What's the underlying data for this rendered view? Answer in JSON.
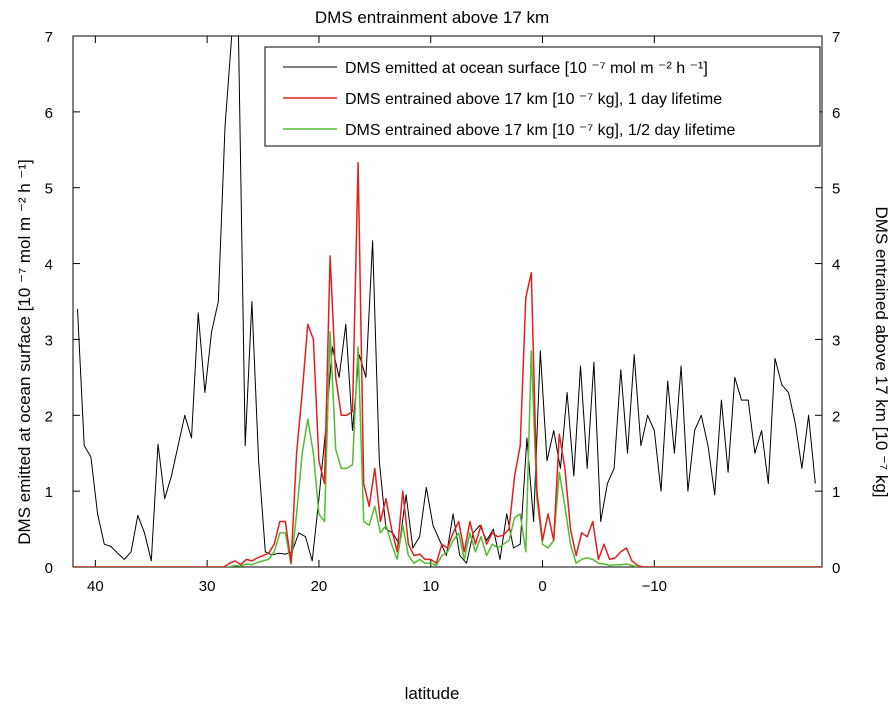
{
  "chart_data": {
    "type": "line",
    "title": "DMS entrainment above 17 km",
    "xlabel": "latitude",
    "ylabel_left": "DMS emitted at ocean surface [10 ⁻⁷ mol m ⁻² h ⁻¹]",
    "ylabel_right": "DMS entrained above 17 km [10 ⁻⁷ kg]",
    "xlim": [
      42,
      -25
    ],
    "x_reversed": true,
    "ylim": [
      0,
      7
    ],
    "x_ticks": [
      40,
      30,
      20,
      10,
      0,
      -10
    ],
    "x_tick_labels": [
      "40",
      "30",
      "20",
      "10",
      "0",
      "−10"
    ],
    "y_ticks": [
      0,
      1,
      2,
      3,
      4,
      5,
      6,
      7
    ],
    "y_tick_labels_left": [
      "0",
      "1",
      "2",
      "3",
      "4",
      "5",
      "6",
      "7"
    ],
    "y_tick_labels_right": [
      "0",
      "1",
      "2",
      "3",
      "4",
      "5",
      "6",
      "7"
    ],
    "grid": false,
    "legend_position": "top-right",
    "series": [
      {
        "name": "DMS emitted at ocean surface [10 ⁻⁷ mol m ⁻² h ⁻¹]",
        "color": "#000000",
        "x": [
          41.6,
          41,
          40.4,
          39.8,
          39.2,
          38.6,
          38,
          37.4,
          36.8,
          36.2,
          35.6,
          35,
          34.4,
          33.8,
          33.2,
          32.6,
          32,
          31.4,
          30.8,
          30.2,
          29.6,
          29,
          28.4,
          27.8,
          27.2,
          26.6,
          26,
          25.4,
          24.8,
          24.2,
          23.6,
          23,
          22.4,
          21.8,
          21.2,
          20.6,
          20,
          19.4,
          18.8,
          18.2,
          17.6,
          17,
          16.4,
          15.8,
          15.2,
          14.6,
          14,
          13.4,
          12.8,
          12.2,
          11.6,
          11,
          10.4,
          9.8,
          9.2,
          8.6,
          8,
          7.4,
          6.8,
          6.2,
          5.6,
          5,
          4.4,
          3.8,
          3.2,
          2.6,
          2,
          1.4,
          0.8,
          0.2,
          -0.4,
          -1,
          -1.6,
          -2.2,
          -2.8,
          -3.4,
          -4,
          -4.6,
          -5.2,
          -5.8,
          -6.4,
          -7,
          -7.6,
          -8.2,
          -8.8,
          -9.4,
          -10,
          -10.6,
          -11.2,
          -11.8,
          -12.4,
          -13,
          -13.6,
          -14.2,
          -14.8,
          -15.4,
          -16,
          -16.6,
          -17.2,
          -17.8,
          -18.4,
          -19,
          -19.6,
          -20.2,
          -20.8,
          -21.4,
          -22,
          -22.6,
          -23.2,
          -23.8,
          -24.4
        ],
        "y": [
          3.4,
          1.6,
          1.45,
          0.7,
          0.3,
          0.27,
          0.18,
          0.1,
          0.2,
          0.68,
          0.45,
          0.08,
          1.62,
          0.9,
          1.2,
          1.6,
          2.0,
          1.7,
          3.35,
          2.3,
          3.1,
          3.5,
          5.8,
          7.0,
          7.0,
          1.6,
          3.5,
          1.4,
          0.2,
          0.16,
          0.18,
          0.17,
          0.2,
          0.45,
          0.4,
          0.08,
          0.9,
          1.8,
          2.9,
          2.5,
          3.2,
          1.8,
          2.8,
          2.5,
          4.3,
          1.4,
          0.5,
          0.45,
          0.3,
          0.95,
          0.25,
          0.4,
          1.05,
          0.55,
          0.35,
          0.15,
          0.7,
          0.15,
          0.05,
          0.45,
          0.55,
          0.35,
          0.5,
          0.1,
          0.7,
          0.25,
          0.3,
          1.7,
          0.6,
          2.85,
          1.4,
          1.8,
          1.3,
          2.3,
          1.2,
          2.65,
          1.3,
          2.7,
          0.6,
          1.1,
          1.3,
          2.6,
          1.5,
          2.8,
          1.6,
          2.0,
          1.8,
          1.0,
          2.45,
          1.5,
          2.65,
          1.0,
          1.8,
          2.0,
          1.6,
          0.95,
          2.2,
          1.25,
          2.5,
          2.2,
          2.2,
          1.5,
          1.8,
          1.1,
          2.75,
          2.4,
          2.3,
          1.9,
          1.3,
          2.0,
          1.1
        ],
        "x_stride_note": ""
      },
      {
        "name": "DMS entrained above 17 km [10 ⁻⁷ kg], 1 day lifetime",
        "color": "#e02020",
        "x": [
          42,
          30,
          28.5,
          28,
          27.5,
          27,
          26.5,
          26,
          25.5,
          25,
          24.5,
          24,
          23.5,
          23,
          22.5,
          22,
          21.5,
          21,
          20.5,
          20,
          19.5,
          19,
          18.5,
          18,
          17.5,
          17,
          16.5,
          16,
          15.5,
          15,
          14.5,
          14,
          13.5,
          13,
          12.5,
          12,
          11.5,
          11,
          10.5,
          10,
          9.5,
          9,
          8.5,
          8,
          7.5,
          7,
          6.5,
          6,
          5.5,
          5,
          4.5,
          4,
          3.5,
          3,
          2.5,
          2,
          1.5,
          1,
          0.5,
          0,
          -0.5,
          -1,
          -1.5,
          -2,
          -2.5,
          -3,
          -3.5,
          -4,
          -4.5,
          -5,
          -5.5,
          -6,
          -6.5,
          -7,
          -7.5,
          -8,
          -8.5,
          -9,
          -9.5,
          -10,
          -10.5,
          -11,
          -11.5,
          -12,
          -12.5,
          -13,
          -13.5,
          -14,
          -14.5,
          -15,
          -25
        ],
        "y": [
          0,
          0,
          0,
          0.05,
          0.08,
          0.03,
          0.1,
          0.08,
          0.12,
          0.15,
          0.18,
          0.3,
          0.6,
          0.6,
          0.05,
          1.5,
          2.3,
          3.2,
          3.0,
          1.4,
          1.1,
          4.1,
          2.5,
          2.0,
          2.0,
          2.05,
          5.33,
          1.1,
          0.8,
          1.3,
          0.6,
          0.9,
          0.5,
          0.2,
          1.0,
          0.3,
          0.15,
          0.17,
          0.1,
          0.1,
          0.05,
          0.3,
          0.25,
          0.45,
          0.6,
          0.2,
          0.6,
          0.3,
          0.55,
          0.3,
          0.45,
          0.4,
          0.42,
          0.5,
          1.2,
          1.6,
          3.55,
          3.88,
          1.0,
          0.35,
          0.7,
          0.35,
          1.75,
          1.3,
          0.5,
          0.15,
          0.45,
          0.4,
          0.6,
          0.1,
          0.3,
          0.1,
          0.12,
          0.2,
          0.25,
          0.08,
          0.02,
          0,
          0,
          0,
          0,
          0,
          0,
          0,
          0,
          0,
          0,
          0,
          0,
          0,
          0
        ]
      },
      {
        "name": "DMS entrained above 17 km [10 ⁻⁷ kg], 1/2 day lifetime",
        "color": "#55bb33",
        "x": [
          42,
          28,
          27.5,
          27,
          26.5,
          26,
          25.5,
          25,
          24.5,
          24,
          23.5,
          23,
          22.5,
          22,
          21.5,
          21,
          20.5,
          20,
          19.5,
          19,
          18.5,
          18,
          17.5,
          17,
          16.5,
          16,
          15.5,
          15,
          14.5,
          14,
          13.5,
          13,
          12.5,
          12,
          11.5,
          11,
          10.5,
          10,
          9.5,
          9,
          8.5,
          8,
          7.5,
          7,
          6.5,
          6,
          5.5,
          5,
          4.5,
          4,
          3.5,
          3,
          2.5,
          2,
          1.5,
          1,
          0.5,
          0,
          -0.5,
          -1,
          -1.5,
          -2,
          -2.5,
          -3,
          -3.5,
          -4,
          -4.5,
          -5,
          -5.5,
          -6,
          -6.5,
          -7,
          -7.5,
          -8,
          -8.5,
          -9,
          -9.5,
          -10,
          -25
        ],
        "y": [
          0,
          0,
          0.02,
          0.01,
          0.04,
          0.03,
          0.06,
          0.08,
          0.1,
          0.2,
          0.45,
          0.45,
          0.04,
          0.7,
          1.5,
          1.95,
          1.5,
          0.7,
          0.6,
          3.1,
          1.55,
          1.3,
          1.3,
          1.35,
          2.9,
          0.6,
          0.55,
          0.8,
          0.45,
          0.55,
          0.3,
          0.1,
          0.55,
          0.15,
          0.05,
          0.1,
          0.05,
          0.05,
          0.02,
          0.15,
          0.2,
          0.35,
          0.45,
          0.1,
          0.45,
          0.2,
          0.4,
          0.15,
          0.3,
          0.25,
          0.3,
          0.35,
          0.65,
          0.7,
          0.2,
          2.85,
          0.9,
          0.3,
          0.25,
          0.35,
          1.25,
          0.8,
          0.3,
          0.05,
          0.1,
          0.12,
          0.1,
          0.05,
          0.04,
          0.02,
          0.03,
          0.03,
          0.04,
          0.02,
          0,
          0,
          0,
          0,
          0
        ]
      }
    ]
  }
}
